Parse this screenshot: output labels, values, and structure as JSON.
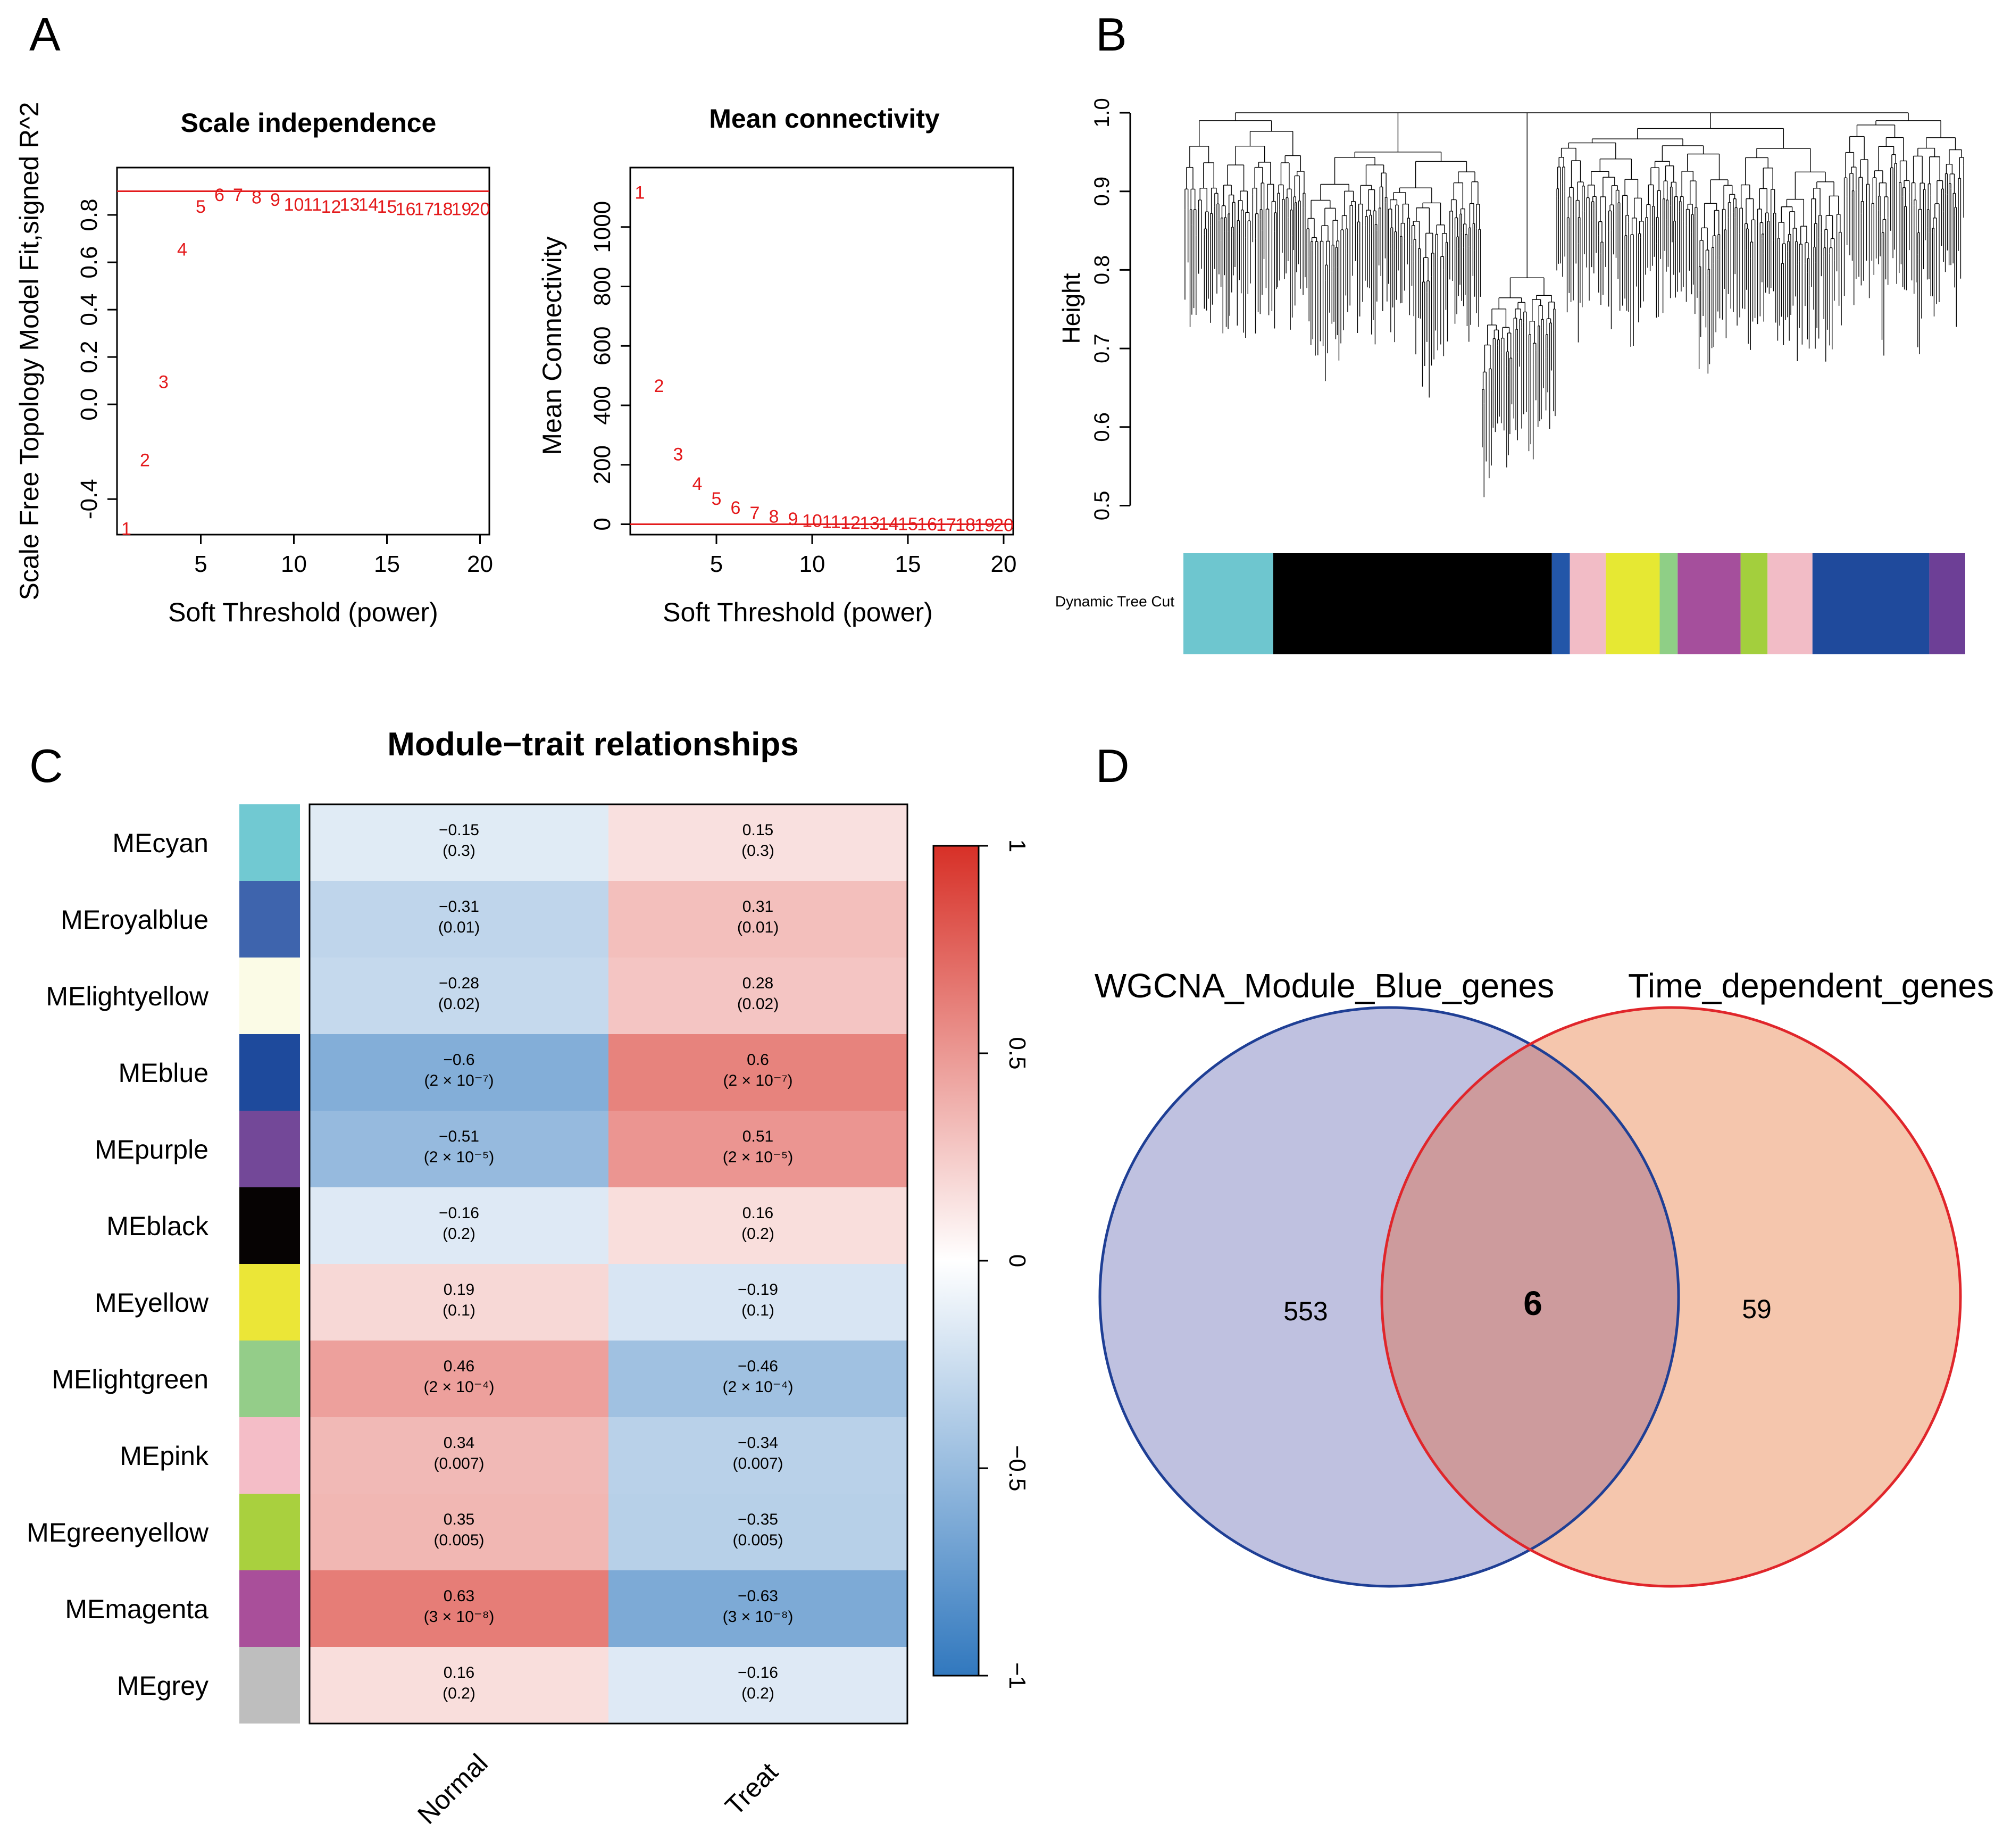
{
  "panels": {
    "A": "A",
    "B": "B",
    "C": "C",
    "D": "D"
  },
  "chart_data": [
    {
      "id": "scale_independence",
      "type": "scatter",
      "title": "Scale independence",
      "xlabel": "Soft Threshold (power)",
      "ylabel": "Scale Free Topology Model Fit,signed R^2",
      "xlim": [
        0.5,
        20.5
      ],
      "ylim": [
        -0.55,
        1.0
      ],
      "xticks": [
        5,
        10,
        15,
        20
      ],
      "yticks": [
        -0.4,
        0.0,
        0.2,
        0.4,
        0.6,
        0.8
      ],
      "ytick_labels": [
        "-0.4",
        "0.0",
        "0.2",
        "0.4",
        "0.6",
        "0.8"
      ],
      "hline": 0.9,
      "points": [
        {
          "x": 1,
          "y": -0.52,
          "label": "1"
        },
        {
          "x": 2,
          "y": -0.23,
          "label": "2"
        },
        {
          "x": 3,
          "y": 0.1,
          "label": "3"
        },
        {
          "x": 4,
          "y": 0.66,
          "label": "4"
        },
        {
          "x": 5,
          "y": 0.84,
          "label": "5"
        },
        {
          "x": 6,
          "y": 0.89,
          "label": "6"
        },
        {
          "x": 7,
          "y": 0.89,
          "label": "7"
        },
        {
          "x": 8,
          "y": 0.88,
          "label": "8"
        },
        {
          "x": 9,
          "y": 0.87,
          "label": "9"
        },
        {
          "x": 10,
          "y": 0.85,
          "label": "10"
        },
        {
          "x": 11,
          "y": 0.85,
          "label": "11"
        },
        {
          "x": 12,
          "y": 0.84,
          "label": "12"
        },
        {
          "x": 13,
          "y": 0.85,
          "label": "13"
        },
        {
          "x": 14,
          "y": 0.85,
          "label": "14"
        },
        {
          "x": 15,
          "y": 0.84,
          "label": "15"
        },
        {
          "x": 16,
          "y": 0.83,
          "label": "16"
        },
        {
          "x": 17,
          "y": 0.83,
          "label": "17"
        },
        {
          "x": 18,
          "y": 0.83,
          "label": "18"
        },
        {
          "x": 19,
          "y": 0.83,
          "label": "19"
        },
        {
          "x": 20,
          "y": 0.83,
          "label": "20"
        }
      ]
    },
    {
      "id": "mean_connectivity",
      "type": "scatter",
      "title": "Mean connectivity",
      "xlabel": "Soft Threshold (power)",
      "ylabel": "Mean Connectivity",
      "xlim": [
        0.5,
        20.5
      ],
      "ylim": [
        -35,
        1200
      ],
      "xticks": [
        5,
        10,
        15,
        20
      ],
      "yticks": [
        0,
        200,
        400,
        600,
        800,
        1000
      ],
      "ytick_labels": [
        "0",
        "200",
        "400",
        "600",
        "800",
        "1000"
      ],
      "hline": 0,
      "points": [
        {
          "x": 1,
          "y": 1120,
          "label": "1"
        },
        {
          "x": 2,
          "y": 470,
          "label": "2"
        },
        {
          "x": 3,
          "y": 240,
          "label": "3"
        },
        {
          "x": 4,
          "y": 140,
          "label": "4"
        },
        {
          "x": 5,
          "y": 90,
          "label": "5"
        },
        {
          "x": 6,
          "y": 60,
          "label": "6"
        },
        {
          "x": 7,
          "y": 42,
          "label": "7"
        },
        {
          "x": 8,
          "y": 30,
          "label": "8"
        },
        {
          "x": 9,
          "y": 22,
          "label": "9"
        },
        {
          "x": 10,
          "y": 16,
          "label": "10"
        },
        {
          "x": 11,
          "y": 12,
          "label": "11"
        },
        {
          "x": 12,
          "y": 10,
          "label": "12"
        },
        {
          "x": 13,
          "y": 8,
          "label": "13"
        },
        {
          "x": 14,
          "y": 6,
          "label": "14"
        },
        {
          "x": 15,
          "y": 5,
          "label": "15"
        },
        {
          "x": 16,
          "y": 4,
          "label": "16"
        },
        {
          "x": 17,
          "y": 3,
          "label": "17"
        },
        {
          "x": 18,
          "y": 3,
          "label": "18"
        },
        {
          "x": 19,
          "y": 2,
          "label": "19"
        },
        {
          "x": 20,
          "y": 2,
          "label": "20"
        }
      ]
    },
    {
      "id": "dendrogram",
      "type": "dendrogram",
      "ylabel": "Height",
      "ylim": [
        0.48,
        1.0
      ],
      "yticks": [
        0.5,
        0.6,
        0.7,
        0.8,
        0.9,
        1.0
      ],
      "ytick_labels": [
        "0.5",
        "0.6",
        "0.7",
        "0.8",
        "0.9",
        "1.0"
      ],
      "colorbar_label": "Dynamic Tree Cut",
      "module_colors": [
        "#6ec6cf",
        "#000000",
        "#2356a8",
        "#f2bcc6",
        "#e6e833",
        "#8fcf86",
        "#a54f9c",
        "#a3cf3d",
        "#f2bcc6",
        "#1f4a9c",
        "#6d3f96"
      ],
      "module_color_names": [
        "cyan",
        "black",
        "royalblue",
        "pink",
        "yellow",
        "lightgreen",
        "magenta",
        "greenyellow",
        "pink",
        "blue",
        "purple"
      ],
      "module_widths": [
        0.1,
        0.31,
        0.02,
        0.04,
        0.06,
        0.02,
        0.07,
        0.03,
        0.05,
        0.13,
        0.04
      ]
    },
    {
      "id": "module_trait",
      "type": "heatmap",
      "title": "Module−trait relationships",
      "traits": [
        "Normal",
        "Treat"
      ],
      "modules": [
        {
          "name": "MEcyan",
          "color": "#71c9d2",
          "vals": [
            -0.15,
            0.15
          ],
          "txt": [
            "−0.15",
            "0.15"
          ],
          "p": [
            "(0.3)",
            "(0.3)"
          ]
        },
        {
          "name": "MEroyalblue",
          "color": "#3e64ad",
          "vals": [
            -0.31,
            0.31
          ],
          "txt": [
            "−0.31",
            "0.31"
          ],
          "p": [
            "(0.01)",
            "(0.01)"
          ]
        },
        {
          "name": "MElightyellow",
          "color": "#fbfbe6",
          "vals": [
            -0.28,
            0.28
          ],
          "txt": [
            "−0.28",
            "0.28"
          ],
          "p": [
            "(0.02)",
            "(0.02)"
          ]
        },
        {
          "name": "MEblue",
          "color": "#1e4a9c",
          "vals": [
            -0.6,
            0.6
          ],
          "txt": [
            "−0.6",
            "0.6"
          ],
          "p": [
            "(2 × 10⁻⁷)",
            "(2 × 10⁻⁷)"
          ]
        },
        {
          "name": "MEpurple",
          "color": "#734898",
          "vals": [
            -0.51,
            0.51
          ],
          "txt": [
            "−0.51",
            "0.51"
          ],
          "p": [
            "(2 × 10⁻⁵)",
            "(2 × 10⁻⁵)"
          ]
        },
        {
          "name": "MEblack",
          "color": "#060303",
          "vals": [
            -0.16,
            0.16
          ],
          "txt": [
            "−0.16",
            "0.16"
          ],
          "p": [
            "(0.2)",
            "(0.2)"
          ]
        },
        {
          "name": "MEyellow",
          "color": "#ebe637",
          "vals": [
            0.19,
            -0.19
          ],
          "txt": [
            "0.19",
            "−0.19"
          ],
          "p": [
            "(0.1)",
            "(0.1)"
          ]
        },
        {
          "name": "MElightgreen",
          "color": "#94cd89",
          "vals": [
            0.46,
            -0.46
          ],
          "txt": [
            "0.46",
            "−0.46"
          ],
          "p": [
            "(2 × 10⁻⁴)",
            "(2 × 10⁻⁴)"
          ]
        },
        {
          "name": "MEpink",
          "color": "#f4bdc7",
          "vals": [
            0.34,
            -0.34
          ],
          "txt": [
            "0.34",
            "−0.34"
          ],
          "p": [
            "(0.007)",
            "(0.007)"
          ]
        },
        {
          "name": "MEgreenyellow",
          "color": "#a9d03e",
          "vals": [
            0.35,
            -0.35
          ],
          "txt": [
            "0.35",
            "−0.35"
          ],
          "p": [
            "(0.005)",
            "(0.005)"
          ]
        },
        {
          "name": "MEmagenta",
          "color": "#a94f9a",
          "vals": [
            0.63,
            -0.63
          ],
          "txt": [
            "0.63",
            "−0.63"
          ],
          "p": [
            "(3 × 10⁻⁸)",
            "(3 × 10⁻⁸)"
          ]
        },
        {
          "name": "MEgrey",
          "color": "#bebebe",
          "vals": [
            0.16,
            -0.16
          ],
          "txt": [
            "0.16",
            "−0.16"
          ],
          "p": [
            "(0.2)",
            "(0.2)"
          ]
        }
      ],
      "colorbar_ticks": [
        1,
        0.5,
        0,
        -0.5,
        -1
      ],
      "colorbar_tick_labels": [
        "1",
        "0.5",
        "0",
        "−0.5",
        "−1"
      ]
    },
    {
      "id": "venn",
      "type": "venn",
      "sets": [
        {
          "name": "WGCNA_Module_Blue_genes",
          "only": "553",
          "fill": "#bfc1e0",
          "stroke": "#1f3f95"
        },
        {
          "name": "Time_dependent_genes",
          "only": "59",
          "fill": "#f5c6ad",
          "stroke": "#e0262b"
        }
      ],
      "intersection": "6",
      "intersection_fill": "#cd9b9d"
    }
  ]
}
